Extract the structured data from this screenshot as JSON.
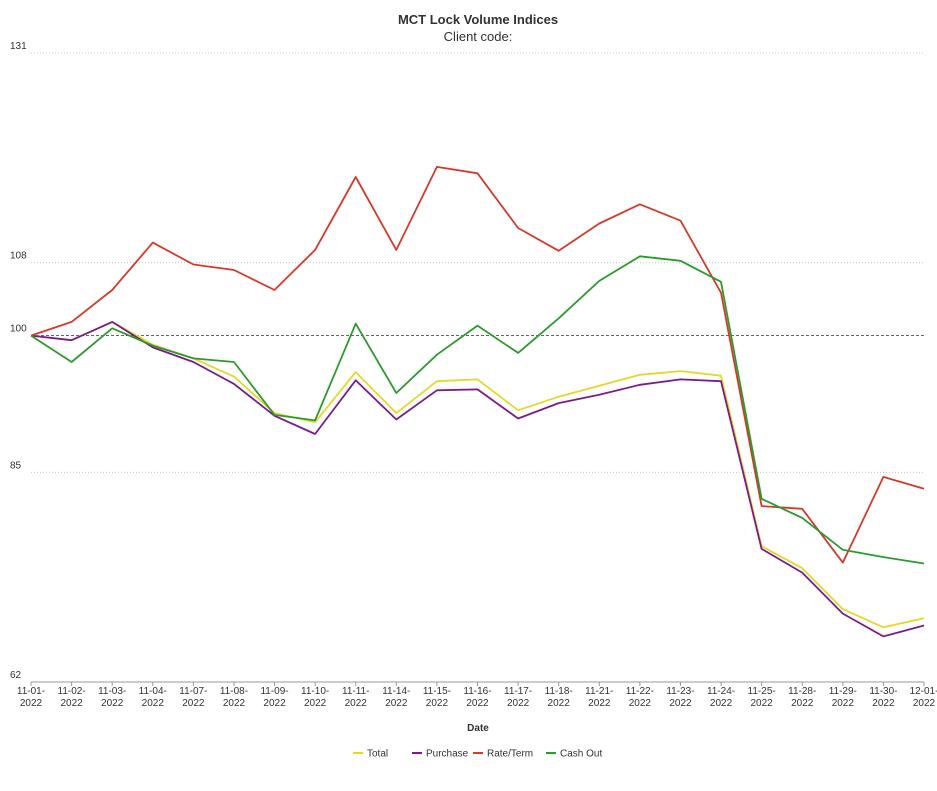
{
  "chart_data": {
    "type": "line",
    "title": "MCT Lock Volume Indices",
    "subtitle": "Client code:",
    "xlabel": "Date",
    "ylabel": "",
    "ylim": [
      62,
      131
    ],
    "yticks": [
      "131",
      "108",
      "100",
      "85",
      "62"
    ],
    "ytick_values": [
      131,
      108,
      100,
      85,
      62
    ],
    "reference_line": 100,
    "grid": true,
    "legend_position": "bottom",
    "categories": [
      "11-01-2022",
      "11-02-2022",
      "11-03-2022",
      "11-04-2022",
      "11-07-2022",
      "11-08-2022",
      "11-09-2022",
      "11-10-2022",
      "11-11-2022",
      "11-14-2022",
      "11-15-2022",
      "11-16-2022",
      "11-17-2022",
      "11-18-2022",
      "11-21-2022",
      "11-22-2022",
      "11-23-2022",
      "11-24-2022",
      "11-25-2022",
      "11-28-2022",
      "11-29-2022",
      "11-30-2022",
      "12-01-2022"
    ],
    "tick_lines": [
      [
        "11-01-",
        "2022"
      ],
      [
        "11-02-",
        "2022"
      ],
      [
        "11-03-",
        "2022"
      ],
      [
        "11-04-",
        "2022"
      ],
      [
        "11-07-",
        "2022"
      ],
      [
        "11-08-",
        "2022"
      ],
      [
        "11-09-",
        "2022"
      ],
      [
        "11-10-",
        "2022"
      ],
      [
        "11-11-",
        "2022"
      ],
      [
        "11-14-",
        "2022"
      ],
      [
        "11-15-",
        "2022"
      ],
      [
        "11-16-",
        "2022"
      ],
      [
        "11-17-",
        "2022"
      ],
      [
        "11-18-",
        "2022"
      ],
      [
        "11-21-",
        "2022"
      ],
      [
        "11-22-",
        "2022"
      ],
      [
        "11-23-",
        "2022"
      ],
      [
        "11-24-",
        "2022"
      ],
      [
        "11-25-",
        "2022"
      ],
      [
        "11-28-",
        "2022"
      ],
      [
        "11-29-",
        "2022"
      ],
      [
        "11-30-",
        "2022"
      ],
      [
        "12-01-",
        "2022"
      ]
    ],
    "series": [
      {
        "name": "Total",
        "color": "#e2d92a",
        "values": [
          100,
          99.5,
          101.5,
          99,
          97.5,
          95.5,
          91.5,
          90.5,
          96,
          91.5,
          95,
          95.2,
          91.8,
          93.3,
          94.5,
          95.7,
          96.1,
          95.6,
          76.9,
          74.5,
          70,
          68,
          69
        ]
      },
      {
        "name": "Purchase",
        "color": "#7a1c8c",
        "values": [
          100,
          99.5,
          101.5,
          98.7,
          97.1,
          94.7,
          91.2,
          89.2,
          95.1,
          90.8,
          94,
          94.1,
          90.9,
          92.6,
          93.5,
          94.6,
          95.2,
          95,
          76.6,
          74,
          69.5,
          67,
          68.2
        ]
      },
      {
        "name": "Rate/Term",
        "color": "#d43a2a",
        "values": [
          100,
          101.5,
          105,
          110.2,
          107.8,
          107.2,
          105,
          109.4,
          117.4,
          109.4,
          118.5,
          117.8,
          111.8,
          109.3,
          112.3,
          114.4,
          112.6,
          104.7,
          81.3,
          81,
          75.1,
          84.5,
          83.2
        ]
      },
      {
        "name": "Cash Out",
        "color": "#2d9a2d",
        "values": [
          100,
          97.1,
          100.8,
          98.9,
          97.5,
          97.1,
          91.3,
          90.7,
          101.3,
          93.7,
          97.9,
          101.1,
          98.1,
          101.9,
          106,
          108.7,
          108.2,
          105.9,
          82.1,
          80,
          76.5,
          75.7,
          75
        ]
      }
    ]
  }
}
